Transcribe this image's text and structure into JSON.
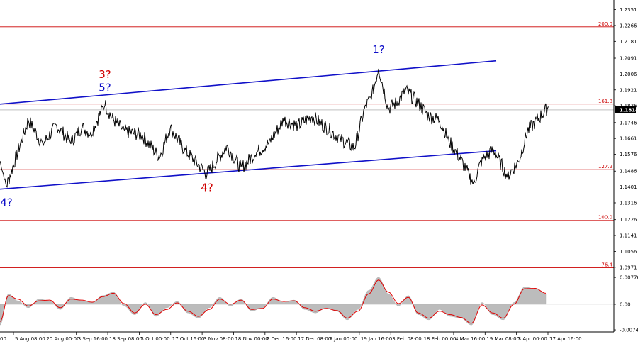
{
  "chart_data": {
    "type": "line",
    "title": "",
    "price_axis": {
      "ticks": [
        "1.2351",
        "1.2266",
        "1.2181",
        "1.2091",
        "1.2006",
        "1.1921",
        "1.1836",
        "1.1746",
        "1.1661",
        "1.1576",
        "1.1486",
        "1.1401",
        "1.1316",
        "1.1226",
        "1.1141",
        "1.1056",
        "1.0971"
      ],
      "tick_values": [
        1.2351,
        1.2266,
        1.2181,
        1.2091,
        1.2006,
        1.1921,
        1.1836,
        1.1746,
        1.1661,
        1.1576,
        1.1486,
        1.1401,
        1.1316,
        1.1226,
        1.1141,
        1.1056,
        1.0971
      ],
      "range": [
        1.0955,
        1.2395
      ],
      "current_price": "1.1814",
      "current_value": 1.1814
    },
    "time_axis": {
      "ticks": [
        "5 Aug 08:00",
        "20 Aug 00:00",
        "3 Sep 16:00",
        "18 Sep 08:00",
        "3 Oct 00:00",
        "17 Oct 16:00",
        "3 Nov 08:00",
        "18 Nov 00:00",
        "2 Dec 16:00",
        "17 Dec 08:00",
        "5 Jan 00:00",
        "19 Jan 16:00",
        "3 Feb 08:00",
        "18 Feb 00:00",
        "4 Mar 16:00",
        "19 Mar 08:00",
        "3 Apr 00:00",
        "17 Apr 16:00"
      ],
      "leading_fragment": "00"
    },
    "levels": [
      {
        "label": "200.0",
        "value": 1.2259
      },
      {
        "label": "161.8",
        "value": 1.1845
      },
      {
        "label": "127.2",
        "value": 1.1494
      },
      {
        "label": "100.0",
        "value": 1.1222
      },
      {
        "label": "76.4",
        "value": 1.0968
      }
    ],
    "channel_lines": [
      {
        "from": {
          "bar": -5,
          "price": 1.1843
        },
        "to": {
          "bar": 700,
          "price": 1.2077
        }
      },
      {
        "from": {
          "bar": -5,
          "price": 1.1388
        },
        "to": {
          "bar": 700,
          "price": 1.1595
        }
      }
    ],
    "wave_labels": [
      {
        "text": "4?",
        "color": "#1010c8",
        "bar": 9,
        "price": 1.1345,
        "anchor": "below"
      },
      {
        "text": "5?",
        "color": "#1010c8",
        "bar": 148,
        "price": 1.1915,
        "anchor": "above"
      },
      {
        "text": "3?",
        "color": "#d00000",
        "bar": 148,
        "price": 1.1985,
        "anchor": "above"
      },
      {
        "text": "4?",
        "color": "#d00000",
        "bar": 292,
        "price": 1.1425,
        "anchor": "below"
      },
      {
        "text": "1?",
        "color": "#1010c8",
        "bar": 534,
        "price": 1.2118,
        "anchor": "above"
      }
    ],
    "price_series": {
      "name": "",
      "bars": [
        0,
        9,
        40,
        60,
        80,
        100,
        115,
        128,
        148,
        158,
        175,
        200,
        225,
        240,
        260,
        292,
        320,
        340,
        360,
        380,
        400,
        420,
        440,
        460,
        480,
        500,
        515,
        524,
        534,
        548,
        562,
        572,
        590,
        605,
        620,
        633,
        648,
        668,
        680,
        696,
        716,
        732,
        744,
        760,
        774
      ],
      "values": [
        1.154,
        1.1405,
        1.176,
        1.163,
        1.173,
        1.164,
        1.172,
        1.169,
        1.1845,
        1.177,
        1.17,
        1.168,
        1.156,
        1.172,
        1.16,
        1.147,
        1.162,
        1.15,
        1.158,
        1.164,
        1.176,
        1.173,
        1.178,
        1.172,
        1.166,
        1.161,
        1.183,
        1.188,
        1.204,
        1.182,
        1.186,
        1.192,
        1.185,
        1.178,
        1.176,
        1.165,
        1.156,
        1.142,
        1.155,
        1.16,
        1.146,
        1.154,
        1.17,
        1.177,
        1.183
      ]
    },
    "oscillator": {
      "ticks": [
        "0.00776",
        "0.00",
        "-0.0074"
      ],
      "tick_values": [
        0.00776,
        0.0,
        -0.0074
      ],
      "range": [
        -0.0078,
        0.0084
      ],
      "main": {
        "bars": [
          0,
          12,
          25,
          40,
          55,
          70,
          85,
          100,
          115,
          130,
          145,
          160,
          175,
          190,
          205,
          220,
          235,
          250,
          265,
          280,
          295,
          310,
          325,
          340,
          355,
          370,
          385,
          400,
          415,
          430,
          445,
          460,
          475,
          490,
          505,
          520,
          534,
          548,
          562,
          576,
          590,
          605,
          620,
          635,
          650,
          665,
          680,
          695,
          710,
          725,
          740,
          755,
          770
        ],
        "values": [
          -0.006,
          0.003,
          0.001,
          -0.001,
          0.0015,
          0.001,
          -0.0015,
          0.002,
          0.001,
          0.0005,
          0.0025,
          0.0035,
          -0.0005,
          -0.003,
          0.0005,
          -0.0035,
          -0.001,
          0.0008,
          -0.0025,
          -0.004,
          -0.001,
          0.002,
          -0.0005,
          0.0015,
          -0.002,
          -0.001,
          0.002,
          0.0005,
          0.0012,
          -0.0015,
          -0.0025,
          -0.001,
          -0.002,
          -0.0045,
          -0.0015,
          0.004,
          0.0078,
          0.003,
          -0.0005,
          0.0025,
          -0.003,
          -0.0045,
          -0.0015,
          -0.0035,
          -0.004,
          -0.006,
          0.0005,
          -0.003,
          -0.0045,
          0.0005,
          0.005,
          0.0045,
          0.003
        ]
      },
      "signal": {
        "bars": [
          0,
          12,
          25,
          40,
          55,
          70,
          85,
          100,
          115,
          130,
          145,
          160,
          175,
          190,
          205,
          220,
          235,
          250,
          265,
          280,
          295,
          310,
          325,
          340,
          355,
          370,
          385,
          400,
          415,
          430,
          445,
          460,
          475,
          490,
          505,
          520,
          534,
          548,
          562,
          576,
          590,
          605,
          620,
          635,
          650,
          665,
          680,
          695,
          710,
          725,
          740,
          755,
          770
        ],
        "values": [
          -0.005,
          0.0025,
          0.0015,
          -0.0005,
          0.001,
          0.0012,
          -0.001,
          0.0015,
          0.0012,
          0.0006,
          0.0022,
          0.0032,
          0.0002,
          -0.0025,
          0.0,
          -0.003,
          -0.0015,
          0.0004,
          -0.002,
          -0.0035,
          -0.0015,
          0.0015,
          0.0,
          0.0012,
          -0.0015,
          -0.0012,
          0.0015,
          0.0008,
          0.001,
          -0.001,
          -0.002,
          -0.0012,
          -0.0018,
          -0.004,
          -0.002,
          0.003,
          0.007,
          0.0035,
          0.0002,
          0.002,
          -0.0025,
          -0.004,
          -0.002,
          -0.003,
          -0.0038,
          -0.0055,
          -0.0002,
          -0.0025,
          -0.004,
          0.0,
          0.0045,
          0.0046,
          0.0032
        ]
      }
    },
    "grid": false,
    "legend": "none"
  }
}
